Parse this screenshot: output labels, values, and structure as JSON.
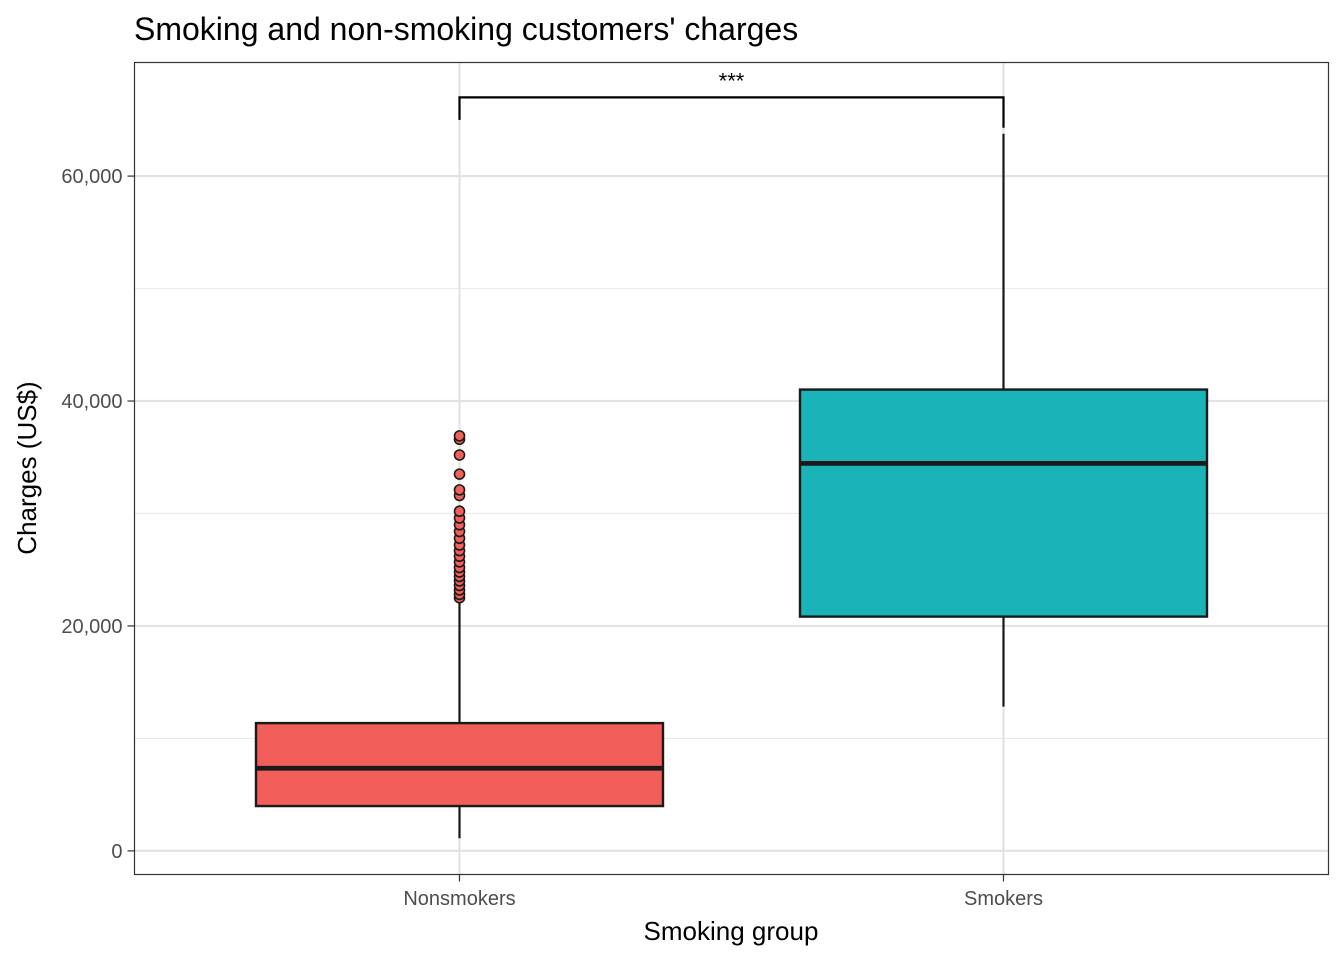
{
  "chart_data": {
    "type": "box",
    "title": "Smoking and non-smoking customers' charges",
    "xlabel": "Smoking group",
    "ylabel": "Charges (US$)",
    "ylim": [
      -2100,
      70100
    ],
    "y_ticks": [
      0,
      20000,
      40000,
      60000
    ],
    "y_tick_labels": [
      "0",
      "20,000",
      "40,000",
      "60,000"
    ],
    "grid": true,
    "categories": [
      "Nonsmokers",
      "Smokers"
    ],
    "boxes": [
      {
        "category": "Nonsmokers",
        "fill": "#F25E5A",
        "whisker_low": 1122,
        "q1": 3986,
        "median": 7345,
        "q3": 11363,
        "whisker_high": 22400,
        "outliers": [
          22500,
          22800,
          23200,
          23600,
          24000,
          24400,
          24800,
          25200,
          25700,
          26200,
          26700,
          27200,
          27800,
          28400,
          29000,
          29600,
          30200,
          31600,
          32100,
          33500,
          35200,
          36600,
          36900
        ]
      },
      {
        "category": "Smokers",
        "fill": "#1AB3B8",
        "whisker_low": 12830,
        "q1": 20830,
        "median": 34456,
        "q3": 41019,
        "whisker_high": 63770,
        "outliers": []
      }
    ],
    "significance": {
      "label": "***",
      "between": [
        "Nonsmokers",
        "Smokers"
      ],
      "y": 67000,
      "left_tip": 65000,
      "right_tip": 64300
    }
  }
}
